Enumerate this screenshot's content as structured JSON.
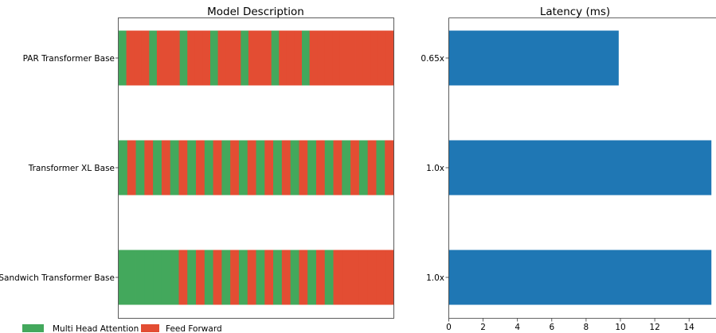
{
  "chart_data": [
    {
      "type": "bar",
      "title": "Model Description",
      "categories": [
        "PAR Transformer Base",
        "Transformer XL Base",
        "Sandwich Transformer Base"
      ],
      "layer_sequences": [
        [
          "M",
          "F",
          "F",
          "F",
          "M",
          "F",
          "F",
          "F",
          "M",
          "F",
          "F",
          "F",
          "M",
          "F",
          "F",
          "F",
          "M",
          "F",
          "F",
          "F",
          "M",
          "F",
          "F",
          "F",
          "M",
          "F",
          "F",
          "F",
          "F",
          "F",
          "F",
          "F",
          "F",
          "F",
          "F",
          "F"
        ],
        [
          "M",
          "F",
          "M",
          "F",
          "M",
          "F",
          "M",
          "F",
          "M",
          "F",
          "M",
          "F",
          "M",
          "F",
          "M",
          "F",
          "M",
          "F",
          "M",
          "F",
          "M",
          "F",
          "M",
          "F",
          "M",
          "F",
          "M",
          "F",
          "M",
          "F",
          "M",
          "F"
        ],
        [
          "M",
          "M",
          "M",
          "M",
          "M",
          "M",
          "M",
          "F",
          "M",
          "F",
          "M",
          "F",
          "M",
          "F",
          "M",
          "F",
          "M",
          "F",
          "M",
          "F",
          "M",
          "F",
          "M",
          "F",
          "M",
          "F",
          "F",
          "F",
          "F",
          "F",
          "F",
          "F"
        ]
      ],
      "legend": {
        "entries": [
          {
            "label": "Multi Head Attention",
            "code": "M",
            "color": "#43a85c"
          },
          {
            "label": "Feed Forward",
            "code": "F",
            "color": "#e34d33"
          }
        ],
        "placement": "bottom-left"
      },
      "xlabel": "",
      "ylabel": ""
    },
    {
      "type": "bar",
      "orientation": "horizontal",
      "title": "Latency (ms)",
      "categories": [
        "0.65x",
        "1.0x",
        "1.0x"
      ],
      "values": [
        9.9,
        15.3,
        15.3
      ],
      "xlim": [
        0,
        15.3
      ],
      "xticks": [
        0,
        2,
        4,
        6,
        8,
        10,
        12,
        14
      ],
      "color": "#1f77b4",
      "xlabel": "",
      "ylabel": ""
    }
  ]
}
